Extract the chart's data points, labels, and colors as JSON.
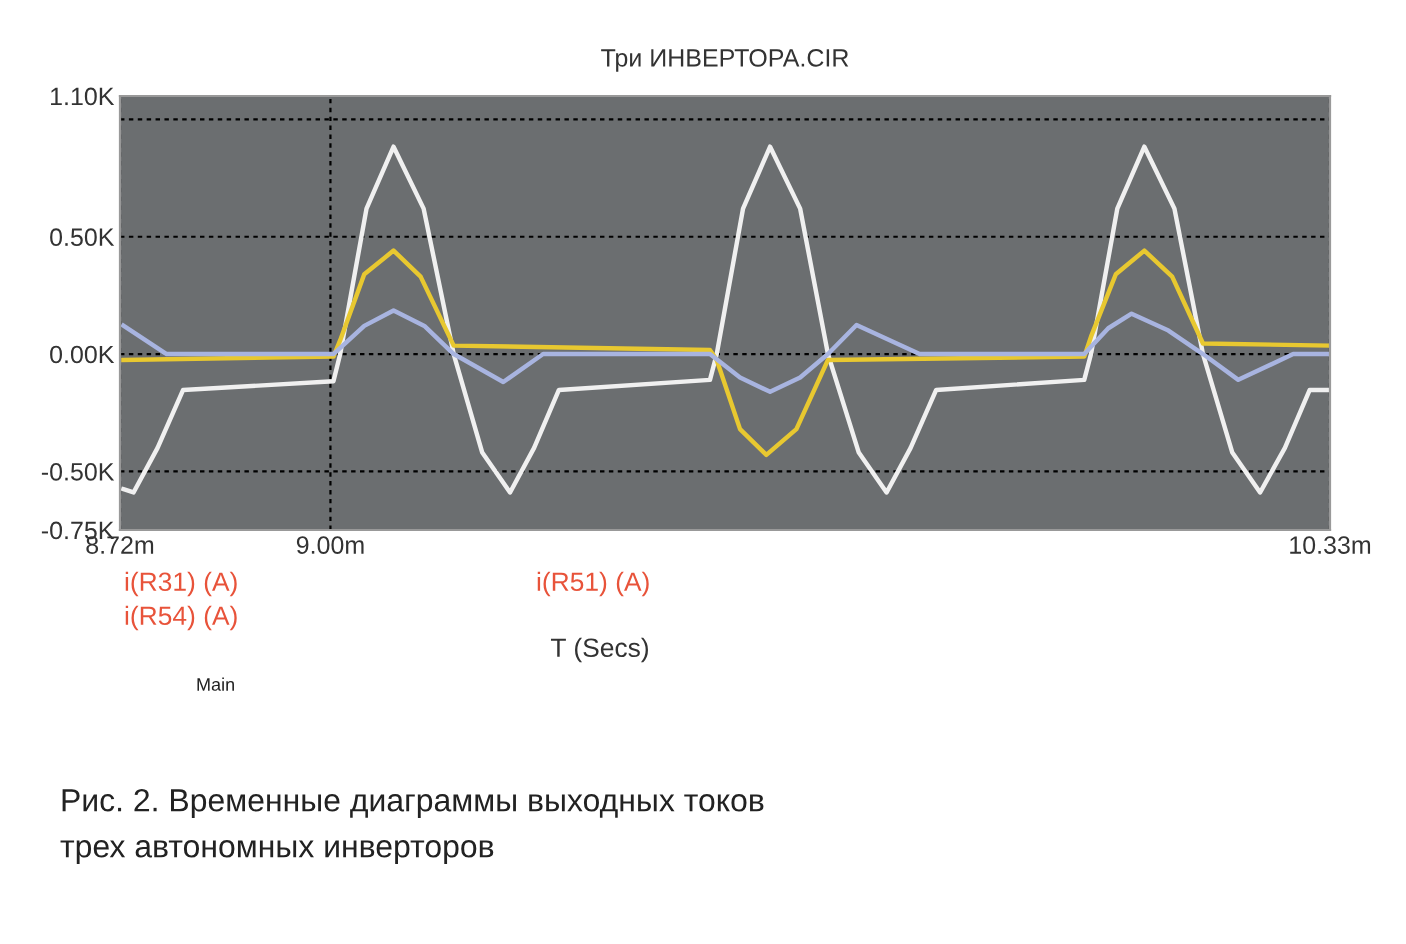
{
  "chart_data": {
    "type": "line",
    "title": "Три ИНВЕРТОРА.CIR",
    "xlabel": "T (Secs)",
    "annotations": [
      "i(R31) (A)",
      "i(R54) (A)",
      "i(R51) (A)",
      "Main",
      "Рис. 2. Временные диаграммы выходных токов\nтрех автономных инверторов"
    ],
    "xlim": [
      8.72,
      10.33
    ],
    "xticks": [
      {
        "value": 8.72,
        "label": "8.72m"
      },
      {
        "value": 9.0,
        "label": "9.00m"
      },
      {
        "value": 10.33,
        "label": "10.33m"
      }
    ],
    "ylim": [
      -750,
      1100
    ],
    "yticks": [
      {
        "value": -750,
        "label": "-0.75K"
      },
      {
        "value": -500,
        "label": "-0.50K"
      },
      {
        "value": 0,
        "label": "0.00K"
      },
      {
        "value": 500,
        "label": "0.50K"
      },
      {
        "value": 1000,
        "label": null
      },
      {
        "value": 1100,
        "label": "1.10K"
      }
    ],
    "grid": true,
    "line_style": "solid",
    "marker": "none",
    "series": [
      {
        "color": "#f0f0f0",
        "x": [
          8.7245,
          8.738,
          8.77,
          8.804,
          9.004,
          9.013,
          9.048,
          9.084,
          9.124,
          9.164,
          9.202,
          9.239,
          9.271,
          9.304,
          9.505,
          9.514,
          9.549,
          9.585,
          9.625,
          9.662,
          9.703,
          9.74,
          9.772,
          9.806,
          10.003,
          10.012,
          10.047,
          10.083,
          10.123,
          10.161,
          10.2,
          10.237,
          10.27,
          10.303,
          10.33
        ],
        "values": [
          -576,
          -590,
          -400,
          -153,
          -116,
          0,
          620,
          884,
          620,
          0,
          -420,
          -590,
          -400,
          -153,
          -110,
          0,
          620,
          884,
          620,
          0,
          -420,
          -590,
          -400,
          -153,
          -110,
          0,
          620,
          884,
          620,
          0,
          -420,
          -590,
          -400,
          -153,
          -153
        ]
      },
      {
        "color": "#e8c830",
        "x": [
          8.7245,
          9.004,
          9.013,
          9.045,
          9.084,
          9.12,
          9.164,
          9.505,
          9.514,
          9.545,
          9.58,
          9.62,
          9.662,
          10.003,
          10.012,
          10.045,
          10.083,
          10.12,
          10.161,
          10.33
        ],
        "values": [
          -25,
          -11,
          59,
          340,
          441,
          330,
          36,
          17,
          -25,
          -320,
          -430,
          -320,
          -25,
          -11,
          74,
          340,
          441,
          330,
          45,
          36
        ]
      },
      {
        "color": "#a8b4e0",
        "x": [
          8.7245,
          8.782,
          9.004,
          9.045,
          9.084,
          9.125,
          9.164,
          9.23,
          9.283,
          9.505,
          9.545,
          9.585,
          9.625,
          9.662,
          9.7,
          9.784,
          10.003,
          10.035,
          10.066,
          10.115,
          10.161,
          10.208,
          10.281,
          10.33
        ],
        "values": [
          121,
          0,
          0,
          120,
          186,
          120,
          0,
          -119,
          0,
          0,
          -100,
          -161,
          -100,
          0,
          124,
          0,
          0,
          110,
          172,
          100,
          0,
          -110,
          0,
          0
        ]
      }
    ]
  }
}
